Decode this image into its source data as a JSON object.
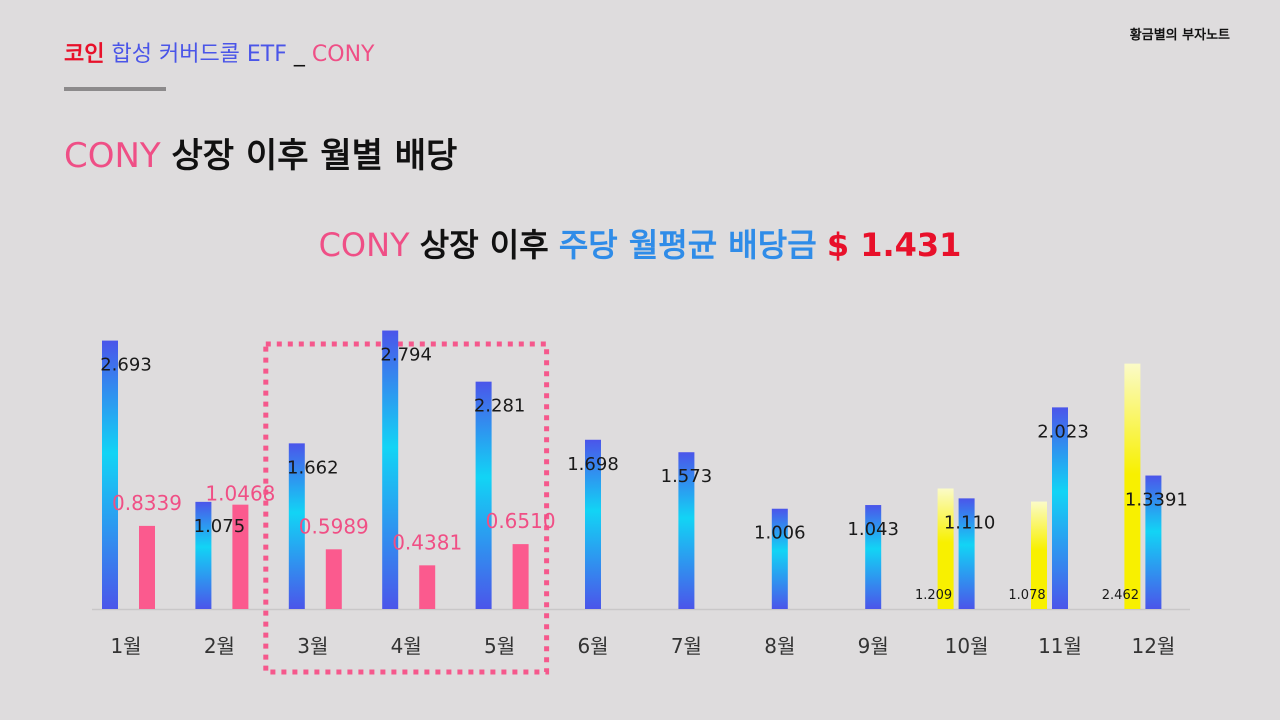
{
  "header": {
    "part1": "코인",
    "part2": "합성 커버드콜 ETF",
    "part3": "_",
    "part4": "CONY",
    "brand": "황금별의 부자노트"
  },
  "title": {
    "ticker": "CONY",
    "rest": "상장 이후 월별 배당"
  },
  "subtitle": {
    "ticker": "CONY",
    "part2": "상장 이후",
    "part3": "주당 월평균 배당금",
    "value": "$ 1.431"
  },
  "colors": {
    "blue_bar_top": "#4b55ea",
    "blue_bar_mid": "#12d4f5",
    "pink_bar": "#fb5a8e",
    "yellow_bar": "#f8f000",
    "highlight_box": "#f5588c"
  },
  "chart_data": {
    "type": "bar",
    "categories": [
      "1월",
      "2월",
      "3월",
      "4월",
      "5월",
      "6월",
      "7월",
      "8월",
      "9월",
      "10월",
      "11월",
      "12월"
    ],
    "ylim": [
      0,
      3
    ],
    "series": [
      {
        "values": [
          2.693,
          1.075,
          1.662,
          2.794,
          2.281,
          1.698,
          1.573,
          1.006,
          1.043,
          1.11,
          2.023,
          1.3391
        ],
        "labels": [
          "2.693",
          "1.075",
          "1.662",
          "2.794",
          "2.281",
          "1.698",
          "1.573",
          "1.006",
          "1.043",
          "1.110",
          "2.023",
          "1.3391"
        ],
        "color": "gradient-blue"
      },
      {
        "values": [
          0.8339,
          1.0468,
          0.5989,
          0.4381,
          0.651,
          null,
          null,
          null,
          null,
          null,
          null,
          null
        ],
        "labels": [
          "0.8339",
          "1.0468",
          "0.5989",
          "0.4381",
          "0.6510",
          "",
          "",
          "",
          "",
          "",
          "",
          ""
        ],
        "color": "pink"
      },
      {
        "values": [
          null,
          null,
          null,
          null,
          null,
          null,
          null,
          null,
          null,
          1.209,
          1.078,
          2.462
        ],
        "labels": [
          "",
          "",
          "",
          "",
          "",
          "",
          "",
          "",
          "",
          "1.209",
          "1.078",
          "2.462"
        ],
        "color": "yellow"
      }
    ],
    "highlight_categories": [
      "3월",
      "4월",
      "5월"
    ]
  }
}
